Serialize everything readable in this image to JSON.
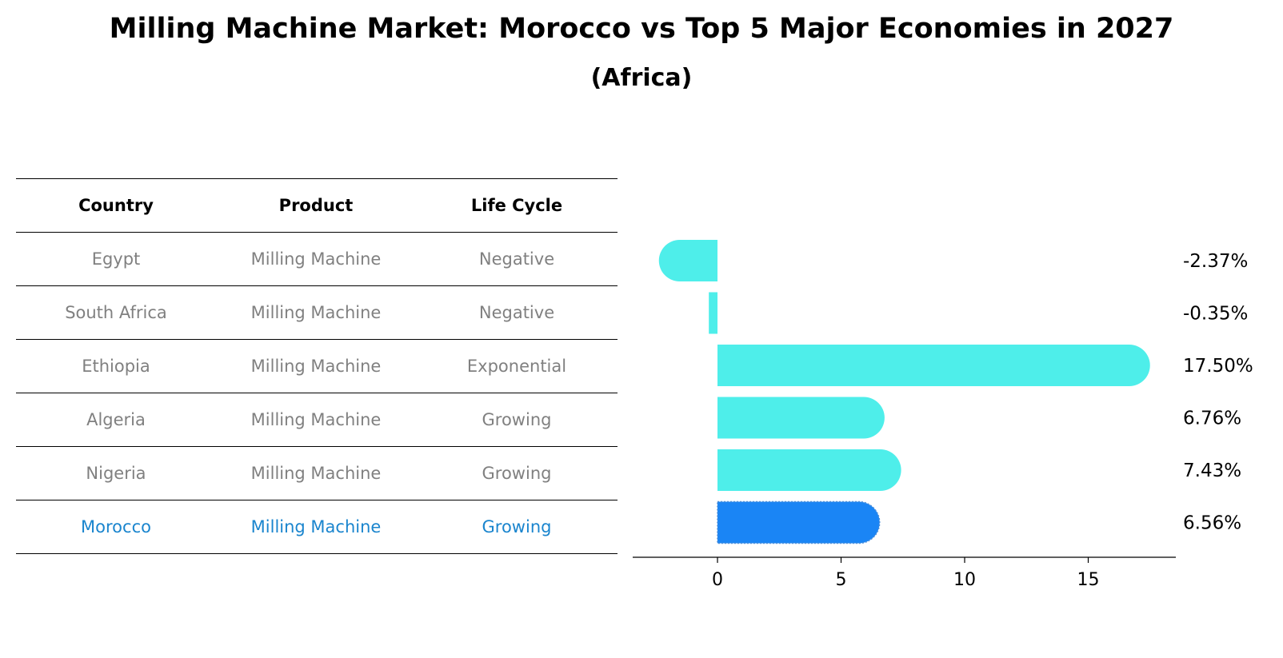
{
  "title": "Milling Machine Market: Morocco vs Top 5 Major Economies in 2027",
  "subtitle": "(Africa)",
  "table": {
    "headers": [
      "Country",
      "Product",
      "Life Cycle"
    ],
    "rows": [
      [
        "Egypt",
        "Milling Machine",
        "Negative"
      ],
      [
        "South Africa",
        "Milling Machine",
        "Negative"
      ],
      [
        "Ethiopia",
        "Milling Machine",
        "Exponential"
      ],
      [
        "Algeria",
        "Milling Machine",
        "Growing"
      ],
      [
        "Nigeria",
        "Milling Machine",
        "Growing"
      ],
      [
        "Morocco",
        "Milling Machine",
        "Growing"
      ]
    ],
    "highlight_row": 5
  },
  "colors": {
    "bar": "#4eeeea",
    "highlight_bar": "#1a85f5",
    "highlight_text": "#1a85ce",
    "muted_text": "#808080"
  },
  "chart_data": {
    "type": "bar",
    "orientation": "horizontal",
    "categories": [
      "Egypt",
      "South Africa",
      "Ethiopia",
      "Algeria",
      "Nigeria",
      "Morocco"
    ],
    "values": [
      -2.37,
      -0.35,
      17.5,
      6.76,
      7.43,
      6.56
    ],
    "value_labels": [
      "-2.37%",
      "-0.35%",
      "17.50%",
      "6.76%",
      "7.43%",
      "6.56%"
    ],
    "highlight": "Morocco",
    "xticks": [
      0,
      5,
      10,
      15
    ],
    "xtick_labels": [
      "0",
      "5",
      "10",
      "15"
    ],
    "xlim": [
      -3.4,
      18.6
    ],
    "grid": false,
    "xlabel": "",
    "ylabel": ""
  }
}
